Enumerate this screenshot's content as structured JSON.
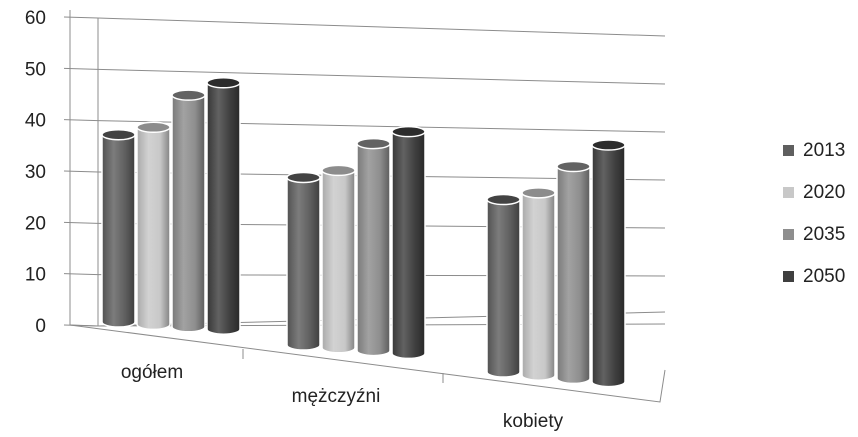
{
  "chart_data": {
    "type": "bar",
    "style": "3d-cylinder",
    "categories": [
      "ogółem",
      "mężczyźni",
      "kobiety"
    ],
    "series": [
      {
        "name": "2013",
        "values": [
          38,
          34,
          35
        ],
        "color": "#5f5f5f"
      },
      {
        "name": "2020",
        "values": [
          40,
          36,
          37
        ],
        "color": "#c8c8c8"
      },
      {
        "name": "2035",
        "values": [
          47,
          42,
          43
        ],
        "color": "#8e8e8e"
      },
      {
        "name": "2050",
        "values": [
          50,
          45,
          48
        ],
        "color": "#3f3f3f"
      }
    ],
    "ylim": [
      0,
      60
    ],
    "yticks": [
      "0",
      "10",
      "20",
      "30",
      "40",
      "50",
      "60"
    ],
    "grid": true,
    "legend_position": "right"
  }
}
